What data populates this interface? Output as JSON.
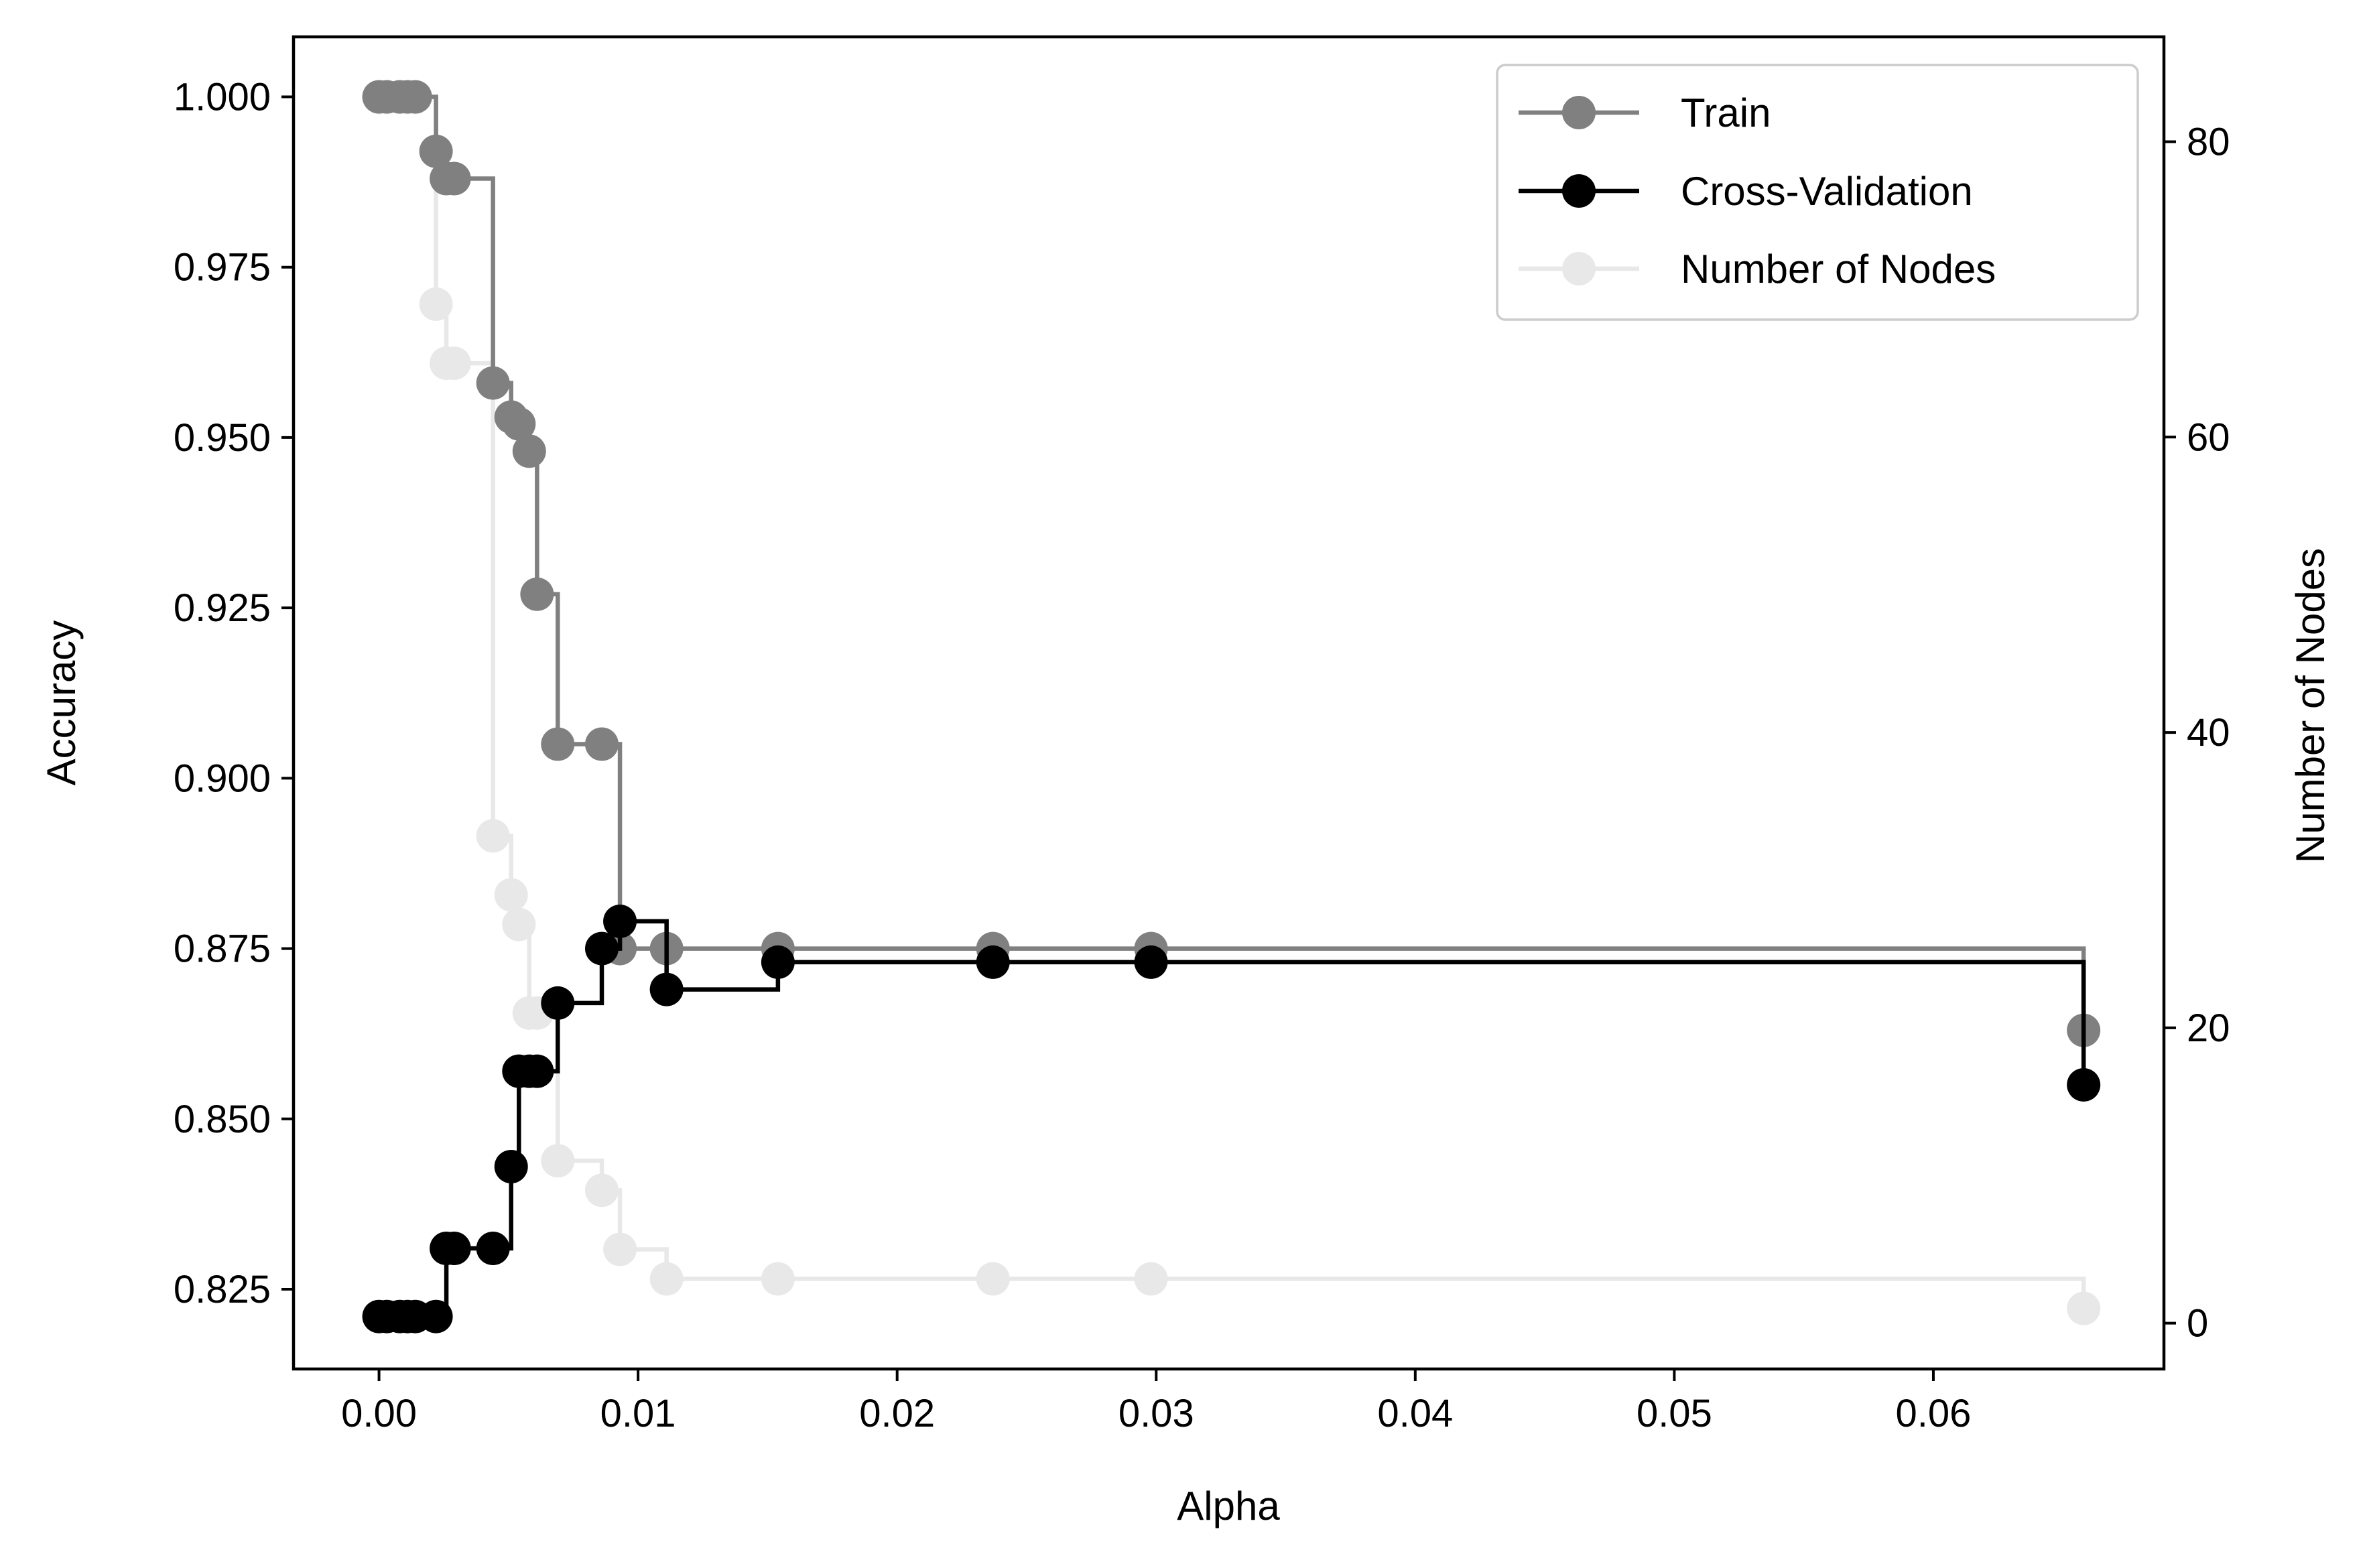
{
  "chart_data": {
    "type": "line",
    "drawstyle": "steps-post",
    "xlabel": "Alpha",
    "ylabel": "Accuracy",
    "y2label": "Number of Nodes",
    "xlim": [
      -0.0033,
      0.0689
    ],
    "ylim": [
      0.8133,
      1.0088
    ],
    "y2lim": [
      -3.1,
      87.1
    ],
    "xticks": [
      0.0,
      0.01,
      0.02,
      0.03,
      0.04,
      0.05,
      0.06
    ],
    "xtick_labels": [
      "0.00",
      "0.01",
      "0.02",
      "0.03",
      "0.04",
      "0.05",
      "0.06"
    ],
    "yticks": [
      0.825,
      0.85,
      0.875,
      0.9,
      0.925,
      0.95,
      0.975,
      1.0
    ],
    "ytick_labels": [
      "0.825",
      "0.850",
      "0.875",
      "0.900",
      "0.925",
      "0.950",
      "0.975",
      "1.000"
    ],
    "y2ticks": [
      0,
      20,
      40,
      60,
      80
    ],
    "y2tick_labels": [
      "0",
      "20",
      "40",
      "60",
      "80"
    ],
    "grid": false,
    "legend_position": "top-right",
    "x": [
      0.0,
      0.0003,
      0.0008,
      0.0011,
      0.0014,
      0.0022,
      0.0026,
      0.0029,
      0.0044,
      0.0051,
      0.0054,
      0.0058,
      0.0061,
      0.0069,
      0.0086,
      0.0093,
      0.0111,
      0.0154,
      0.0237,
      0.0298,
      0.0658
    ],
    "series": [
      {
        "name": "Train",
        "axis": "left",
        "color": "#808080",
        "values": [
          1.0,
          1.0,
          1.0,
          1.0,
          1.0,
          0.992,
          0.988,
          0.988,
          0.958,
          0.953,
          0.952,
          0.948,
          0.927,
          0.905,
          0.905,
          0.875,
          0.875,
          0.875,
          0.875,
          0.875,
          0.863
        ]
      },
      {
        "name": "Cross-Validation",
        "axis": "left",
        "color": "#000000",
        "values": [
          0.821,
          0.821,
          0.821,
          0.821,
          0.821,
          0.821,
          0.831,
          0.831,
          0.831,
          0.843,
          0.857,
          0.857,
          0.857,
          0.867,
          0.875,
          0.879,
          0.869,
          0.873,
          0.873,
          0.873,
          0.855
        ]
      },
      {
        "name": "Number of Nodes",
        "axis": "right",
        "color": "#d9d9d9",
        "values": [
          83,
          83,
          83,
          83,
          83,
          69,
          65,
          65,
          33,
          29,
          27,
          21,
          21,
          11,
          9,
          5,
          3,
          3,
          3,
          3,
          1
        ]
      }
    ]
  }
}
